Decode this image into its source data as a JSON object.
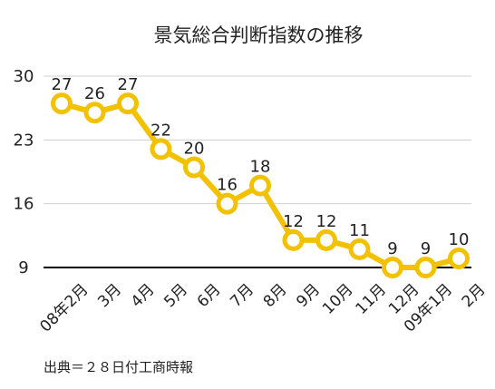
{
  "chart_data": {
    "type": "line",
    "title": "景気総合判断指数の推移",
    "categories": [
      "08年2月",
      "3月",
      "4月",
      "5月",
      "6月",
      "7月",
      "8月",
      "9月",
      "10月",
      "11月",
      "12月",
      "09年1月",
      "2月"
    ],
    "values": [
      27,
      26,
      27,
      22,
      20,
      16,
      18,
      12,
      12,
      11,
      9,
      9,
      10
    ],
    "data_labels": [
      "27",
      "26",
      "27",
      "22",
      "20",
      "16",
      "18",
      "12",
      "12",
      "11",
      "9",
      "9",
      "10"
    ],
    "yticks": [
      9,
      16,
      23,
      30
    ],
    "ytick_labels": [
      "9",
      "16",
      "23",
      "30"
    ],
    "ylim": [
      9,
      30
    ],
    "xlabel": "",
    "ylabel": "",
    "grid": true,
    "legend": "none",
    "source": "出典＝２８日付工商時報",
    "colors": {
      "line": "#F2C200",
      "marker_fill": "#FFFFFF",
      "grid": "#D0D0D0",
      "baseline": "#000000",
      "text": "#222222"
    }
  }
}
